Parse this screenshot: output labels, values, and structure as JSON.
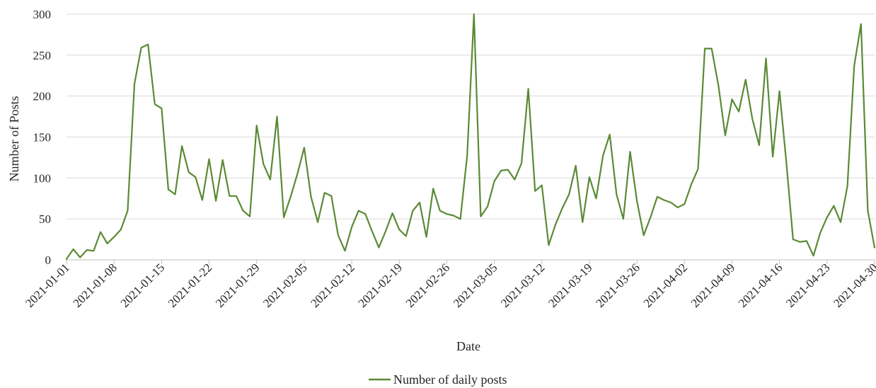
{
  "colors": {
    "series": "#5a8a35"
  },
  "chart_data": {
    "type": "line",
    "title": "",
    "xlabel": "Date",
    "ylabel": "Number of  Posts",
    "ylim": [
      0,
      300
    ],
    "yticks": [
      0,
      50,
      100,
      150,
      200,
      250,
      300
    ],
    "xticks": [
      "2021-01-01",
      "2021-01-08",
      "2021-01-15",
      "2021-01-22",
      "2021-01-29",
      "2021-02-05",
      "2021-02-12",
      "2021-02-19",
      "2021-02-26",
      "2021-03-05",
      "2021-03-12",
      "2021-03-19",
      "2021-03-26",
      "2021-04-02",
      "2021-04-09",
      "2021-04-16",
      "2021-04-23",
      "2021-04-30"
    ],
    "x_start": "2021-01-01",
    "x_end": "2021-04-30",
    "legend": {
      "position": "bottom",
      "entries": [
        "Number of daily posts"
      ]
    },
    "grid": {
      "horizontal": true,
      "vertical": false
    },
    "series": [
      {
        "name": "Number of daily posts",
        "x": [
          "2021-01-01",
          "2021-01-02",
          "2021-01-03",
          "2021-01-04",
          "2021-01-05",
          "2021-01-06",
          "2021-01-07",
          "2021-01-08",
          "2021-01-09",
          "2021-01-10",
          "2021-01-11",
          "2021-01-12",
          "2021-01-13",
          "2021-01-14",
          "2021-01-15",
          "2021-01-16",
          "2021-01-17",
          "2021-01-18",
          "2021-01-19",
          "2021-01-20",
          "2021-01-21",
          "2021-01-22",
          "2021-01-23",
          "2021-01-24",
          "2021-01-25",
          "2021-01-26",
          "2021-01-27",
          "2021-01-28",
          "2021-01-29",
          "2021-01-30",
          "2021-01-31",
          "2021-02-01",
          "2021-02-02",
          "2021-02-03",
          "2021-02-04",
          "2021-02-05",
          "2021-02-06",
          "2021-02-07",
          "2021-02-08",
          "2021-02-09",
          "2021-02-10",
          "2021-02-11",
          "2021-02-12",
          "2021-02-13",
          "2021-02-14",
          "2021-02-15",
          "2021-02-16",
          "2021-02-17",
          "2021-02-18",
          "2021-02-19",
          "2021-02-20",
          "2021-02-21",
          "2021-02-22",
          "2021-02-23",
          "2021-02-24",
          "2021-02-25",
          "2021-02-26",
          "2021-02-27",
          "2021-02-28",
          "2021-03-01",
          "2021-03-02",
          "2021-03-03",
          "2021-03-04",
          "2021-03-05",
          "2021-03-06",
          "2021-03-07",
          "2021-03-08",
          "2021-03-09",
          "2021-03-10",
          "2021-03-11",
          "2021-03-12",
          "2021-03-13",
          "2021-03-14",
          "2021-03-15",
          "2021-03-16",
          "2021-03-17",
          "2021-03-18",
          "2021-03-19",
          "2021-03-20",
          "2021-03-21",
          "2021-03-22",
          "2021-03-23",
          "2021-03-24",
          "2021-03-25",
          "2021-03-26",
          "2021-03-27",
          "2021-03-28",
          "2021-03-29",
          "2021-03-30",
          "2021-03-31",
          "2021-04-01",
          "2021-04-02",
          "2021-04-03",
          "2021-04-04",
          "2021-04-05",
          "2021-04-06",
          "2021-04-07",
          "2021-04-08",
          "2021-04-09",
          "2021-04-10",
          "2021-04-11",
          "2021-04-12",
          "2021-04-13",
          "2021-04-14",
          "2021-04-15",
          "2021-04-16",
          "2021-04-17",
          "2021-04-18",
          "2021-04-19",
          "2021-04-20",
          "2021-04-21",
          "2021-04-22",
          "2021-04-23",
          "2021-04-24",
          "2021-04-25",
          "2021-04-26",
          "2021-04-27",
          "2021-04-28",
          "2021-04-29",
          "2021-04-30"
        ],
        "values": [
          1,
          13,
          3,
          12,
          11,
          34,
          20,
          28,
          37,
          60,
          215,
          259,
          263,
          190,
          185,
          86,
          80,
          139,
          107,
          101,
          73,
          123,
          72,
          122,
          78,
          78,
          60,
          53,
          164,
          117,
          98,
          175,
          52,
          77,
          105,
          137,
          77,
          46,
          82,
          78,
          30,
          11,
          40,
          60,
          56,
          35,
          15,
          35,
          57,
          37,
          29,
          60,
          70,
          28,
          87,
          60,
          56,
          54,
          50,
          127,
          300,
          53,
          65,
          96,
          109,
          110,
          98,
          118,
          209,
          84,
          91,
          18,
          43,
          63,
          80,
          115,
          46,
          101,
          75,
          127,
          153,
          80,
          50,
          132,
          72,
          30,
          52,
          77,
          73,
          70,
          64,
          68,
          92,
          111,
          258,
          258,
          213,
          152,
          196,
          181,
          220,
          172,
          140,
          246,
          126,
          206,
          120,
          25,
          22,
          23,
          5,
          33,
          52,
          66,
          46,
          90,
          237,
          288,
          60,
          15
        ]
      }
    ]
  }
}
